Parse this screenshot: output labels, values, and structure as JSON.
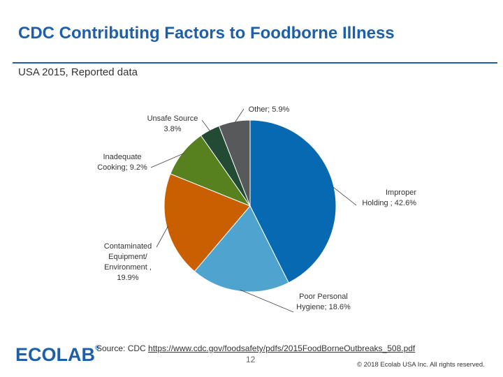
{
  "header": {
    "title": "CDC Contributing Factors to Foodborne Illness",
    "subtitle": "USA 2015, Reported data"
  },
  "chart_data": {
    "type": "pie",
    "title": "",
    "slices": [
      {
        "name": "Improper Holding",
        "value": 42.6,
        "color": "#0869b3",
        "label_lines": [
          "Improper",
          "Holding ; 42.6%"
        ]
      },
      {
        "name": "Poor Personal Hygiene",
        "value": 18.6,
        "color": "#4fa3cf",
        "label_lines": [
          "Poor Personal",
          "Hygiene; 18.6%"
        ]
      },
      {
        "name": "Contaminated Equipment/ Environment",
        "value": 19.9,
        "color": "#c95f00",
        "label_lines": [
          "Contaminated",
          "Equipment/",
          "Environment ,",
          "19.9%"
        ]
      },
      {
        "name": "Inadequate Cooking",
        "value": 9.2,
        "color": "#57801f",
        "label_lines": [
          "Inadequate",
          "Cooking; 9.2%"
        ]
      },
      {
        "name": "Unsafe Source",
        "value": 3.8,
        "color": "#234a33",
        "label_lines": [
          "Unsafe Source",
          "3.8%"
        ]
      },
      {
        "name": "Other",
        "value": 5.9,
        "color": "#58595b",
        "label_lines": [
          "Other; 5.9%"
        ]
      }
    ]
  },
  "footer": {
    "logo_text": "ECOLAB",
    "logo_reg": "®",
    "source_prefix": "Source: CDC",
    "source_url": "https://www.cdc.gov/foodsafety/pdfs/2015FoodBorneOutbreaks_508.pdf",
    "page_number": "12",
    "copyright": "© 2018 Ecolab USA Inc. All rights reserved."
  },
  "colors": {
    "brand": "#1f5fa8"
  }
}
